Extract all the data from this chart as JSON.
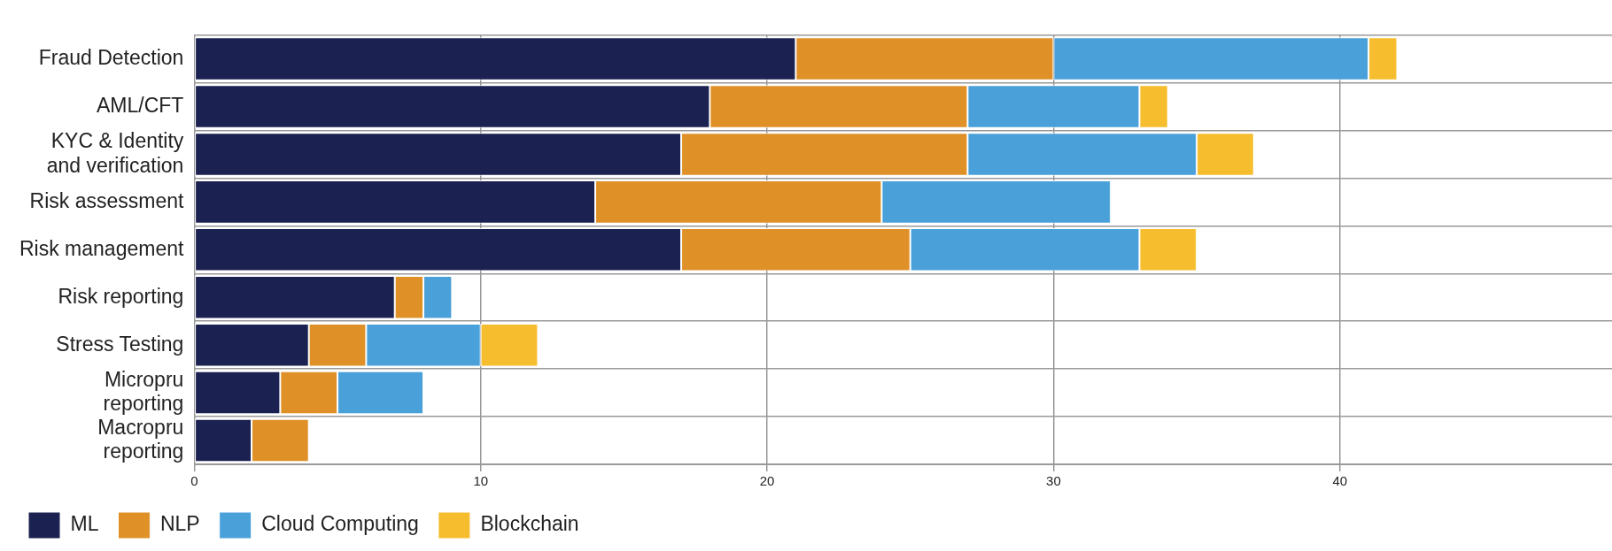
{
  "chart_data": {
    "type": "bar",
    "orientation": "horizontal",
    "stacked": true,
    "categories": [
      "Fraud Detection",
      "AML/CFT",
      "KYC & Identity and verification",
      "Risk assessment",
      "Risk management",
      "Risk reporting",
      "Stress Testing",
      "Micropru reporting",
      "Macropru reporting"
    ],
    "series": [
      {
        "name": "ML",
        "color": "#1b2150",
        "values": [
          21,
          18,
          17,
          14,
          17,
          7,
          4,
          3,
          2
        ]
      },
      {
        "name": "NLP",
        "color": "#df9128",
        "values": [
          9,
          9,
          10,
          10,
          8,
          1,
          2,
          2,
          2
        ]
      },
      {
        "name": "Cloud Computing",
        "color": "#4aa0d8",
        "values": [
          11,
          6,
          8,
          8,
          8,
          1,
          4,
          3,
          null
        ]
      },
      {
        "name": "Blockchain",
        "color": "#f6bd2e",
        "values": [
          1,
          1,
          2,
          null,
          2,
          null,
          2,
          null,
          null
        ]
      }
    ],
    "xlim": [
      0,
      49.5
    ],
    "xticks": [
      0,
      10,
      20,
      30,
      40
    ],
    "grid": true,
    "legend": "bottom left"
  }
}
